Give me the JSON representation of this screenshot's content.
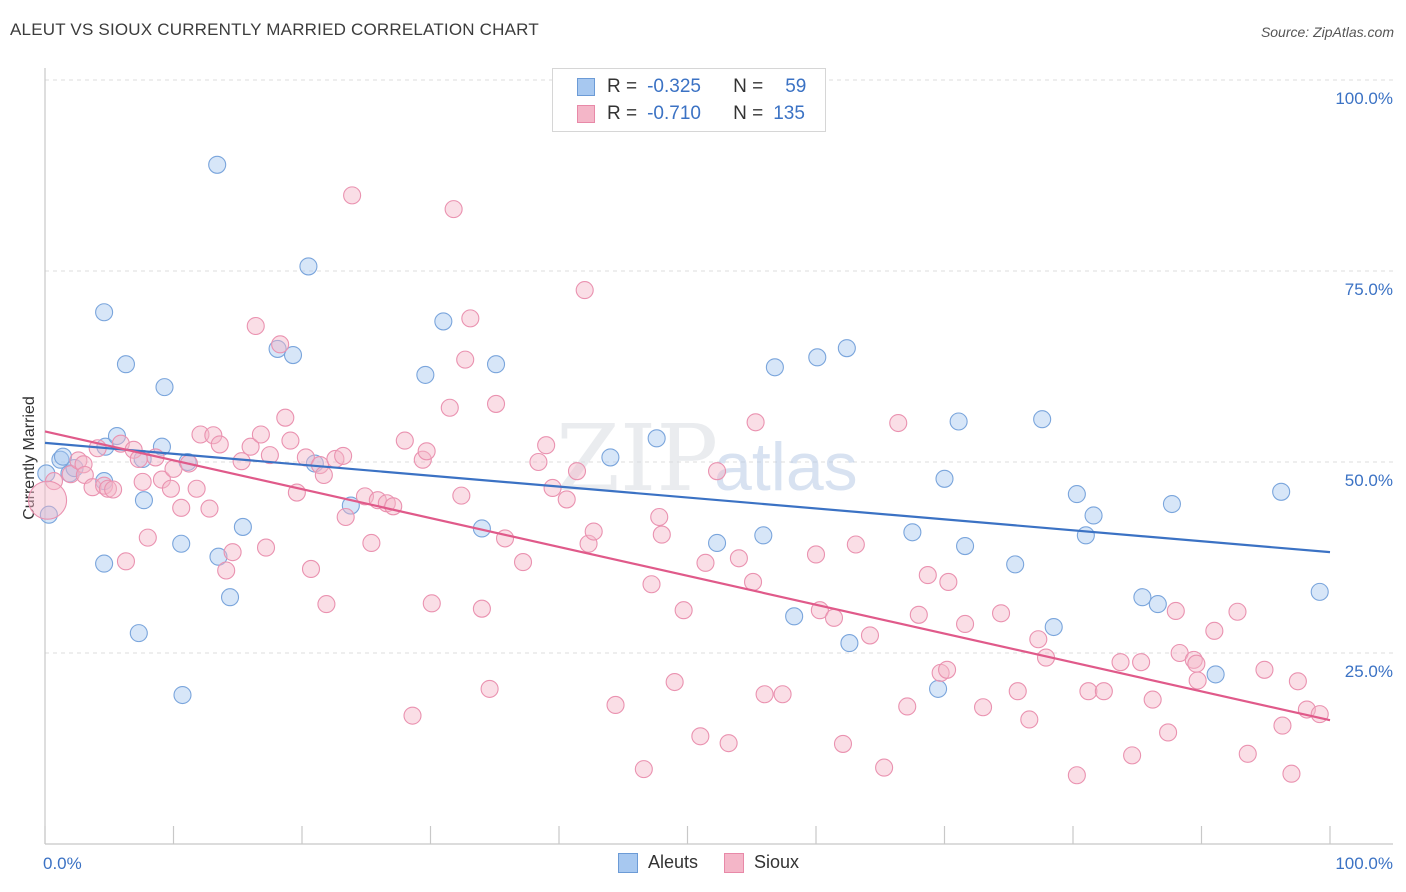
{
  "title": "ALEUT VS SIOUX CURRENTLY MARRIED CORRELATION CHART",
  "source": "Source: ZipAtlas.com",
  "watermark": {
    "zip": "ZIP",
    "atlas": "atlas"
  },
  "legend": {
    "rows": [
      {
        "r_label": "R =",
        "r_value": "-0.325",
        "n_label": "N =",
        "n_value": "59",
        "color": "#a7c8f0"
      },
      {
        "r_label": "R =",
        "r_value": "-0.710",
        "n_label": "N =",
        "n_value": "135",
        "color": "#f4b6c8"
      }
    ]
  },
  "bottom_legend": [
    {
      "label": "Aleuts",
      "color": "#a7c8f0"
    },
    {
      "label": "Sioux",
      "color": "#f4b6c8"
    }
  ],
  "chart_data": {
    "type": "scatter",
    "title": "ALEUT VS SIOUX CURRENTLY MARRIED CORRELATION CHART",
    "xlabel": "",
    "ylabel": "Currently Married",
    "xlim": [
      0,
      100
    ],
    "ylim": [
      0,
      100
    ],
    "x_tick_labels": [
      "0.0%",
      "100.0%"
    ],
    "y_ticks": [
      25,
      50,
      75,
      100
    ],
    "y_tick_labels": [
      "25.0%",
      "50.0%",
      "75.0%",
      "100.0%"
    ],
    "grid": "horizontal dashed",
    "series": [
      {
        "name": "Aleuts",
        "color": "#3b72c4",
        "fill": "#a7c8f0",
        "r": -0.325,
        "n": 59,
        "trend": {
          "x": [
            0,
            100
          ],
          "y": [
            52.5,
            38.2
          ]
        },
        "points": [
          [
            0.3,
            43.1
          ],
          [
            1.2,
            50.3
          ],
          [
            1.4,
            50.7
          ],
          [
            1.9,
            48.5
          ],
          [
            2.3,
            49.2
          ],
          [
            4.6,
            47.5
          ],
          [
            4.7,
            52.0
          ],
          [
            4.6,
            36.7
          ],
          [
            5.6,
            53.4
          ],
          [
            4.6,
            69.6
          ],
          [
            6.3,
            62.8
          ],
          [
            7.3,
            27.6
          ],
          [
            7.6,
            50.4
          ],
          [
            7.7,
            45.0
          ],
          [
            9.1,
            52.0
          ],
          [
            9.3,
            59.8
          ],
          [
            10.6,
            39.3
          ],
          [
            10.7,
            19.5
          ],
          [
            11.1,
            50.0
          ],
          [
            13.4,
            88.9
          ],
          [
            13.5,
            37.6
          ],
          [
            14.4,
            32.3
          ],
          [
            15.4,
            41.5
          ],
          [
            18.1,
            64.8
          ],
          [
            19.3,
            64.0
          ],
          [
            20.5,
            75.6
          ],
          [
            21.0,
            49.8
          ],
          [
            23.8,
            44.3
          ],
          [
            29.6,
            61.4
          ],
          [
            31.0,
            68.4
          ],
          [
            34.0,
            41.3
          ],
          [
            35.1,
            62.8
          ],
          [
            44.0,
            50.6
          ],
          [
            47.6,
            53.1
          ],
          [
            52.3,
            39.4
          ],
          [
            55.9,
            40.4
          ],
          [
            58.3,
            29.8
          ],
          [
            56.8,
            62.4
          ],
          [
            60.1,
            63.7
          ],
          [
            62.4,
            64.9
          ],
          [
            62.6,
            26.3
          ],
          [
            67.5,
            40.8
          ],
          [
            69.5,
            20.3
          ],
          [
            70.0,
            47.8
          ],
          [
            71.1,
            55.3
          ],
          [
            71.6,
            39.0
          ],
          [
            75.5,
            36.6
          ],
          [
            77.6,
            55.6
          ],
          [
            78.5,
            28.4
          ],
          [
            80.3,
            45.8
          ],
          [
            81.0,
            40.4
          ],
          [
            81.6,
            43.0
          ],
          [
            85.4,
            32.3
          ],
          [
            86.6,
            31.4
          ],
          [
            87.7,
            44.5
          ],
          [
            91.1,
            22.2
          ],
          [
            96.2,
            46.1
          ],
          [
            99.2,
            33.0
          ],
          [
            0.1,
            48.5
          ]
        ]
      },
      {
        "name": "Sioux",
        "color": "#e05a8a",
        "fill": "#f4b6c8",
        "r": -0.71,
        "n": 135,
        "trend": {
          "x": [
            0,
            100
          ],
          "y": [
            54.0,
            16.2
          ]
        },
        "points": [
          [
            0.7,
            47.5
          ],
          [
            2.0,
            48.4
          ],
          [
            2.6,
            50.2
          ],
          [
            3.0,
            49.7
          ],
          [
            3.1,
            48.3
          ],
          [
            3.7,
            46.7
          ],
          [
            4.1,
            51.8
          ],
          [
            4.6,
            46.9
          ],
          [
            4.9,
            46.5
          ],
          [
            5.3,
            46.4
          ],
          [
            5.9,
            52.4
          ],
          [
            6.3,
            37.0
          ],
          [
            6.9,
            51.6
          ],
          [
            7.3,
            50.4
          ],
          [
            7.6,
            47.4
          ],
          [
            8.0,
            40.1
          ],
          [
            8.6,
            50.6
          ],
          [
            9.1,
            47.7
          ],
          [
            9.8,
            46.5
          ],
          [
            10.0,
            49.1
          ],
          [
            10.6,
            44.0
          ],
          [
            11.2,
            49.8
          ],
          [
            11.8,
            46.5
          ],
          [
            12.1,
            53.6
          ],
          [
            12.8,
            43.9
          ],
          [
            13.1,
            53.5
          ],
          [
            13.6,
            52.3
          ],
          [
            14.1,
            35.8
          ],
          [
            14.6,
            38.2
          ],
          [
            15.3,
            50.1
          ],
          [
            16.0,
            52.0
          ],
          [
            16.4,
            67.8
          ],
          [
            16.8,
            53.6
          ],
          [
            17.2,
            38.8
          ],
          [
            17.5,
            50.9
          ],
          [
            18.3,
            65.4
          ],
          [
            18.7,
            55.8
          ],
          [
            19.1,
            52.8
          ],
          [
            19.6,
            46.0
          ],
          [
            20.3,
            50.6
          ],
          [
            20.7,
            36.0
          ],
          [
            21.4,
            49.6
          ],
          [
            21.7,
            48.3
          ],
          [
            21.9,
            31.4
          ],
          [
            22.6,
            50.4
          ],
          [
            23.2,
            50.8
          ],
          [
            23.4,
            42.8
          ],
          [
            23.9,
            84.9
          ],
          [
            24.9,
            45.5
          ],
          [
            25.4,
            39.4
          ],
          [
            25.9,
            45.0
          ],
          [
            26.6,
            44.6
          ],
          [
            27.1,
            44.2
          ],
          [
            28.0,
            52.8
          ],
          [
            28.6,
            16.8
          ],
          [
            29.4,
            50.3
          ],
          [
            29.7,
            51.4
          ],
          [
            30.1,
            31.5
          ],
          [
            31.5,
            57.1
          ],
          [
            31.8,
            83.1
          ],
          [
            32.4,
            45.6
          ],
          [
            32.7,
            63.4
          ],
          [
            33.1,
            68.8
          ],
          [
            34.0,
            30.8
          ],
          [
            34.6,
            20.3
          ],
          [
            35.1,
            57.6
          ],
          [
            35.8,
            40.0
          ],
          [
            37.2,
            36.9
          ],
          [
            38.4,
            50.0
          ],
          [
            39.0,
            52.2
          ],
          [
            39.5,
            46.6
          ],
          [
            40.6,
            45.1
          ],
          [
            41.4,
            48.8
          ],
          [
            42.0,
            72.5
          ],
          [
            42.3,
            39.3
          ],
          [
            42.7,
            40.9
          ],
          [
            44.4,
            18.2
          ],
          [
            46.6,
            9.8
          ],
          [
            47.2,
            34.0
          ],
          [
            47.8,
            42.8
          ],
          [
            48.0,
            40.5
          ],
          [
            49.0,
            21.2
          ],
          [
            49.7,
            30.6
          ],
          [
            51.0,
            14.1
          ],
          [
            51.4,
            36.8
          ],
          [
            52.3,
            48.8
          ],
          [
            53.2,
            13.2
          ],
          [
            54.0,
            37.4
          ],
          [
            55.1,
            34.3
          ],
          [
            55.3,
            55.2
          ],
          [
            56.0,
            19.6
          ],
          [
            57.4,
            19.6
          ],
          [
            60.0,
            37.9
          ],
          [
            60.3,
            30.6
          ],
          [
            61.4,
            29.6
          ],
          [
            62.1,
            13.1
          ],
          [
            63.1,
            39.2
          ],
          [
            64.2,
            27.3
          ],
          [
            65.3,
            10.0
          ],
          [
            66.4,
            55.1
          ],
          [
            67.1,
            18.0
          ],
          [
            68.0,
            30.0
          ],
          [
            68.7,
            35.2
          ],
          [
            69.7,
            22.4
          ],
          [
            70.2,
            22.8
          ],
          [
            70.3,
            34.3
          ],
          [
            71.6,
            28.8
          ],
          [
            73.0,
            17.9
          ],
          [
            74.4,
            30.2
          ],
          [
            75.7,
            20.0
          ],
          [
            76.6,
            16.3
          ],
          [
            77.3,
            26.8
          ],
          [
            77.9,
            24.4
          ],
          [
            80.3,
            9.0
          ],
          [
            81.2,
            20.0
          ],
          [
            82.4,
            20.0
          ],
          [
            83.7,
            23.8
          ],
          [
            84.6,
            11.6
          ],
          [
            85.3,
            23.8
          ],
          [
            86.2,
            18.9
          ],
          [
            87.4,
            14.6
          ],
          [
            88.0,
            30.5
          ],
          [
            88.3,
            25.0
          ],
          [
            89.4,
            24.1
          ],
          [
            89.6,
            23.6
          ],
          [
            89.7,
            21.4
          ],
          [
            91.0,
            27.9
          ],
          [
            92.8,
            30.4
          ],
          [
            93.6,
            11.8
          ],
          [
            94.9,
            22.8
          ],
          [
            96.3,
            15.5
          ],
          [
            97.0,
            9.2
          ],
          [
            97.5,
            21.3
          ],
          [
            98.2,
            17.6
          ],
          [
            99.2,
            17.0
          ]
        ]
      }
    ]
  }
}
